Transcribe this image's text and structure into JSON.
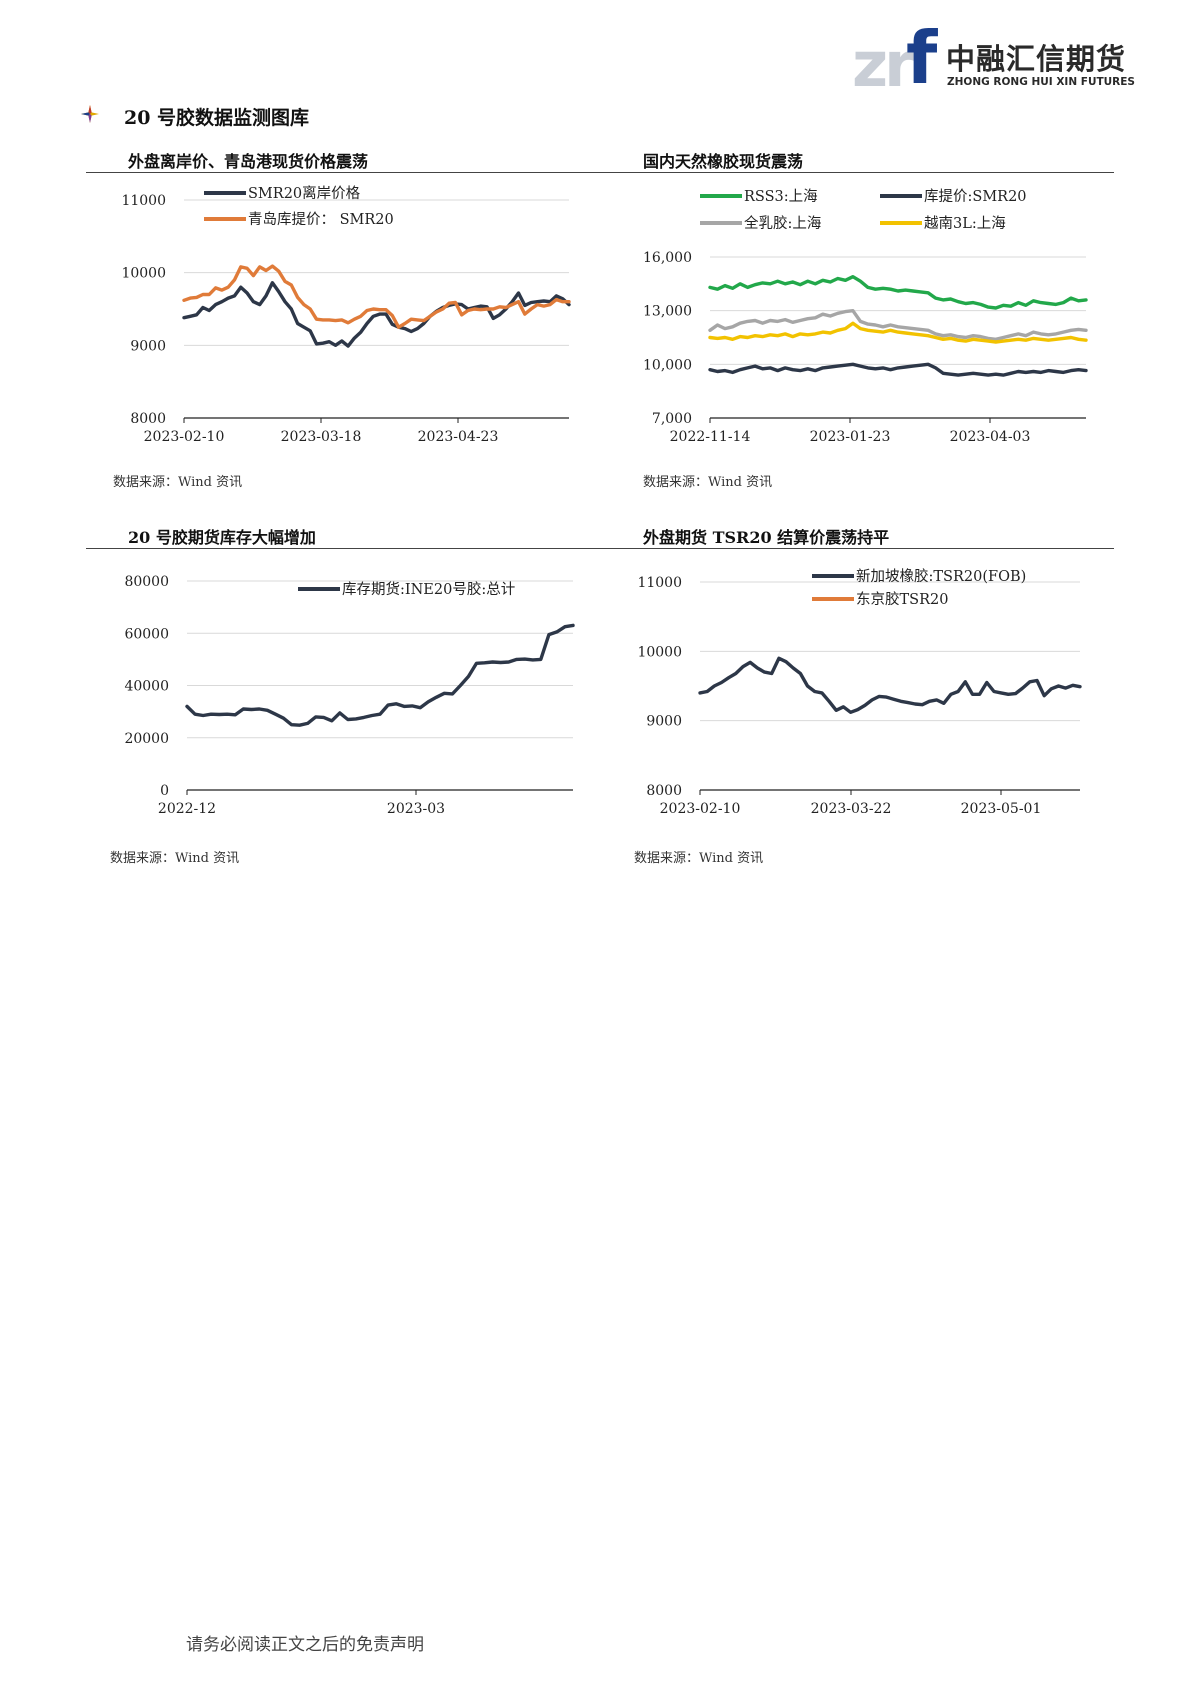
{
  "header": {
    "logo_mark_zr": "zr",
    "logo_mark_f": "f",
    "logo_cn": "中融汇信期货",
    "logo_en": "ZHONG RONG HUI XIN FUTURES",
    "brand_blue": "#1b3f8b"
  },
  "section": {
    "title": "20 号胶数据监测图库",
    "icon": "sparkle-star-icon"
  },
  "charts": [
    {
      "title": "外盘离岸价、青岛港现货价格震荡",
      "source": "数据来源：Wind 资讯",
      "chart_data": {
        "type": "line",
        "x_ticks": [
          "2023-02-10",
          "2023-03-18",
          "2023-04-23"
        ],
        "ylim": [
          8000,
          11000
        ],
        "y_ticks": [
          "11000",
          "10000",
          "9000",
          "8000"
        ],
        "legend_position": "top-left",
        "series": [
          {
            "name": "SMR20离岸价格",
            "color": "#2d3748",
            "values": [
              9380,
              9400,
              9420,
              9520,
              9480,
              9560,
              9600,
              9650,
              9680,
              9800,
              9720,
              9600,
              9560,
              9680,
              9860,
              9740,
              9600,
              9500,
              9300,
              9250,
              9200,
              9020,
              9030,
              9050,
              9000,
              9060,
              8990,
              9100,
              9180,
              9300,
              9400,
              9430,
              9430,
              9290,
              9250,
              9230,
              9190,
              9230,
              9300,
              9400,
              9470,
              9520,
              9550,
              9570,
              9560,
              9500,
              9520,
              9540,
              9530,
              9370,
              9420,
              9500,
              9600,
              9720,
              9550,
              9590,
              9600,
              9610,
              9600,
              9680,
              9640,
              9560
            ]
          },
          {
            "name": "青岛库提价： SMR20",
            "color": "#e07b39",
            "values": [
              9620,
              9650,
              9660,
              9700,
              9700,
              9790,
              9760,
              9800,
              9900,
              10080,
              10060,
              9960,
              10080,
              10030,
              10090,
              10020,
              9880,
              9830,
              9660,
              9560,
              9500,
              9360,
              9350,
              9350,
              9340,
              9350,
              9310,
              9360,
              9400,
              9480,
              9500,
              9490,
              9490,
              9410,
              9250,
              9300,
              9360,
              9350,
              9340,
              9400,
              9460,
              9500,
              9580,
              9590,
              9420,
              9480,
              9500,
              9490,
              9500,
              9500,
              9530,
              9520,
              9560,
              9600,
              9430,
              9500,
              9560,
              9540,
              9560,
              9630,
              9600,
              9600
            ]
          }
        ]
      }
    },
    {
      "title": "国内天然橡胶现货震荡",
      "source": "数据来源：Wind 资讯",
      "chart_data": {
        "type": "line",
        "x_ticks": [
          "2022-11-14",
          "2023-01-23",
          "2023-04-03"
        ],
        "ylim": [
          7000,
          16000
        ],
        "y_ticks": [
          "16,000",
          "13,000",
          "10,000",
          "7,000"
        ],
        "legend_position": "top",
        "series": [
          {
            "name": "RSS3:上海",
            "color": "#22a84a",
            "values": [
              14300,
              14200,
              14400,
              14250,
              14500,
              14300,
              14450,
              14550,
              14500,
              14650,
              14500,
              14600,
              14450,
              14650,
              14500,
              14700,
              14600,
              14800,
              14700,
              14900,
              14650,
              14300,
              14200,
              14250,
              14200,
              14100,
              14150,
              14100,
              14050,
              14000,
              13700,
              13600,
              13650,
              13500,
              13400,
              13450,
              13350,
              13200,
              13150,
              13300,
              13250,
              13450,
              13300,
              13550,
              13450,
              13400,
              13350,
              13450,
              13700,
              13550,
              13600
            ]
          },
          {
            "name": "库提价:SMR20",
            "color": "#2d3748",
            "values": [
              9700,
              9600,
              9650,
              9550,
              9700,
              9800,
              9900,
              9750,
              9800,
              9650,
              9800,
              9700,
              9650,
              9750,
              9650,
              9800,
              9850,
              9900,
              9950,
              10000,
              9900,
              9800,
              9750,
              9800,
              9700,
              9800,
              9850,
              9900,
              9950,
              10000,
              9800,
              9500,
              9450,
              9400,
              9450,
              9500,
              9450,
              9400,
              9450,
              9400,
              9500,
              9600,
              9550,
              9600,
              9550,
              9650,
              9600,
              9550,
              9650,
              9700,
              9650
            ]
          },
          {
            "name": "全乳胶:上海",
            "color": "#a6a6a6",
            "values": [
              11900,
              12200,
              12000,
              12100,
              12300,
              12400,
              12450,
              12300,
              12450,
              12400,
              12500,
              12350,
              12450,
              12550,
              12600,
              12800,
              12700,
              12850,
              12950,
              13000,
              12400,
              12250,
              12200,
              12100,
              12200,
              12100,
              12050,
              12000,
              11950,
              11900,
              11700,
              11600,
              11650,
              11550,
              11500,
              11600,
              11550,
              11450,
              11400,
              11500,
              11600,
              11700,
              11600,
              11800,
              11700,
              11650,
              11700,
              11800,
              11900,
              11950,
              11900
            ]
          },
          {
            "name": "越南3L:上海",
            "color": "#f2c200",
            "values": [
              11500,
              11450,
              11500,
              11400,
              11550,
              11500,
              11600,
              11550,
              11650,
              11600,
              11700,
              11550,
              11700,
              11650,
              11700,
              11800,
              11750,
              11900,
              12000,
              12300,
              12000,
              11900,
              11850,
              11800,
              11900,
              11800,
              11750,
              11700,
              11650,
              11600,
              11500,
              11400,
              11450,
              11350,
              11300,
              11400,
              11350,
              11300,
              11250,
              11300,
              11350,
              11400,
              11350,
              11450,
              11400,
              11350,
              11400,
              11450,
              11500,
              11400,
              11350
            ]
          }
        ]
      }
    },
    {
      "title": "20 号胶期货库存大幅增加",
      "source": "数据来源：Wind 资讯",
      "chart_data": {
        "type": "line",
        "x_ticks": [
          "2022-12",
          "2023-03"
        ],
        "ylim": [
          0,
          80000
        ],
        "y_ticks": [
          "80000",
          "60000",
          "40000",
          "20000",
          "0"
        ],
        "legend_position": "top-right",
        "series": [
          {
            "name": "库存期货:INE20号胶:总计",
            "color": "#2d3748",
            "values": [
              32000,
              29000,
              28500,
              29000,
              28900,
              29000,
              28800,
              31000,
              30800,
              31000,
              30500,
              29000,
              27500,
              25000,
              24800,
              25500,
              28000,
              27800,
              26500,
              29500,
              27000,
              27200,
              27800,
              28500,
              29000,
              32500,
              33000,
              32000,
              32200,
              31500,
              33800,
              35500,
              37000,
              36800,
              40000,
              43500,
              48500,
              48700,
              49000,
              48800,
              49000,
              50000,
              50100,
              49800,
              50000,
              59500,
              60500,
              62500,
              63000
            ]
          }
        ]
      }
    },
    {
      "title": "外盘期货 TSR20 结算价震荡持平",
      "source": "数据来源：Wind 资讯",
      "chart_data": {
        "type": "line",
        "x_ticks": [
          "2023-02-10",
          "2023-03-22",
          "2023-05-01"
        ],
        "ylim": [
          8000,
          11000
        ],
        "y_ticks": [
          "11000",
          "10000",
          "9000",
          "8000"
        ],
        "legend_position": "top-right",
        "series": [
          {
            "name": "新加坡橡胶:TSR20(FOB)",
            "color": "#2d3748",
            "values": [
              9400,
              9420,
              9500,
              9550,
              9620,
              9680,
              9780,
              9840,
              9760,
              9700,
              9680,
              9900,
              9850,
              9760,
              9680,
              9500,
              9420,
              9400,
              9280,
              9150,
              9200,
              9120,
              9160,
              9220,
              9300,
              9350,
              9340,
              9310,
              9280,
              9260,
              9240,
              9230,
              9280,
              9300,
              9250,
              9380,
              9420,
              9560,
              9380,
              9380,
              9550,
              9420,
              9400,
              9380,
              9390,
              9470,
              9560,
              9580,
              9360,
              9460,
              9500,
              9470,
              9510,
              9490
            ]
          },
          {
            "name": "东京胶TSR20",
            "color": "#e07b39",
            "values": []
          }
        ]
      }
    }
  ],
  "footer": {
    "disclaimer": "请务必阅读正文之后的免责声明"
  }
}
